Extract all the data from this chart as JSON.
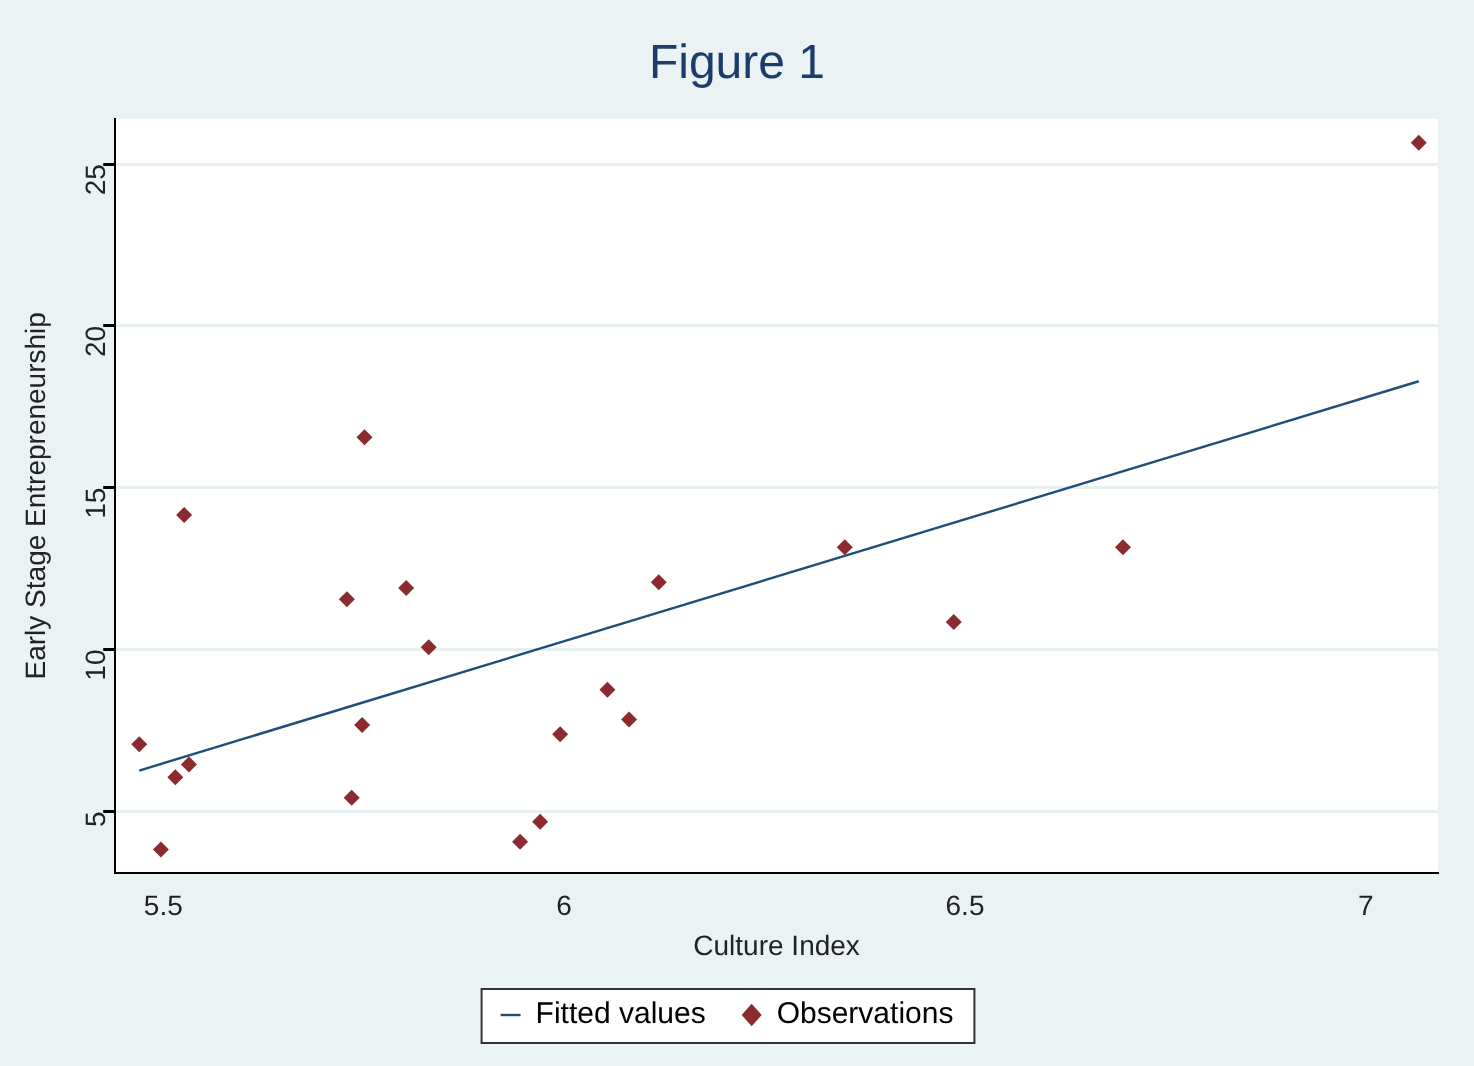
{
  "chart_data": {
    "type": "scatter",
    "title": "Figure 1",
    "xlabel": "Culture Index",
    "ylabel": "Early Stage Entrepreneurship",
    "xlim": [
      5.44,
      7.09
    ],
    "xticks": [
      5.5,
      6,
      6.5,
      7
    ],
    "ylim": [
      3.1,
      26.4
    ],
    "yticks": [
      5,
      10,
      15,
      20,
      25
    ],
    "grid": "y",
    "legend": "bottom",
    "series": [
      {
        "name": "Fitted values",
        "type": "line",
        "color": "#1f4e79",
        "marker": "none",
        "line_style": "solid",
        "x": [
          5.47,
          7.066
        ],
        "values": [
          6.26,
          18.29
        ]
      },
      {
        "name": "Observations",
        "type": "scatter",
        "color": "#8b2b30",
        "marker": "diamond",
        "x": [
          5.47,
          5.497,
          5.515,
          5.532,
          5.526,
          5.729,
          5.735,
          5.748,
          5.751,
          5.803,
          5.831,
          5.945,
          5.97,
          5.995,
          6.054,
          6.081,
          6.118,
          6.35,
          6.486,
          6.697,
          7.066
        ],
        "values": [
          7.07,
          3.82,
          6.05,
          6.45,
          14.16,
          11.55,
          5.42,
          7.67,
          16.56,
          11.9,
          10.07,
          4.06,
          4.68,
          7.38,
          8.76,
          7.84,
          12.08,
          13.16,
          10.85,
          13.16,
          25.66
        ]
      }
    ]
  }
}
